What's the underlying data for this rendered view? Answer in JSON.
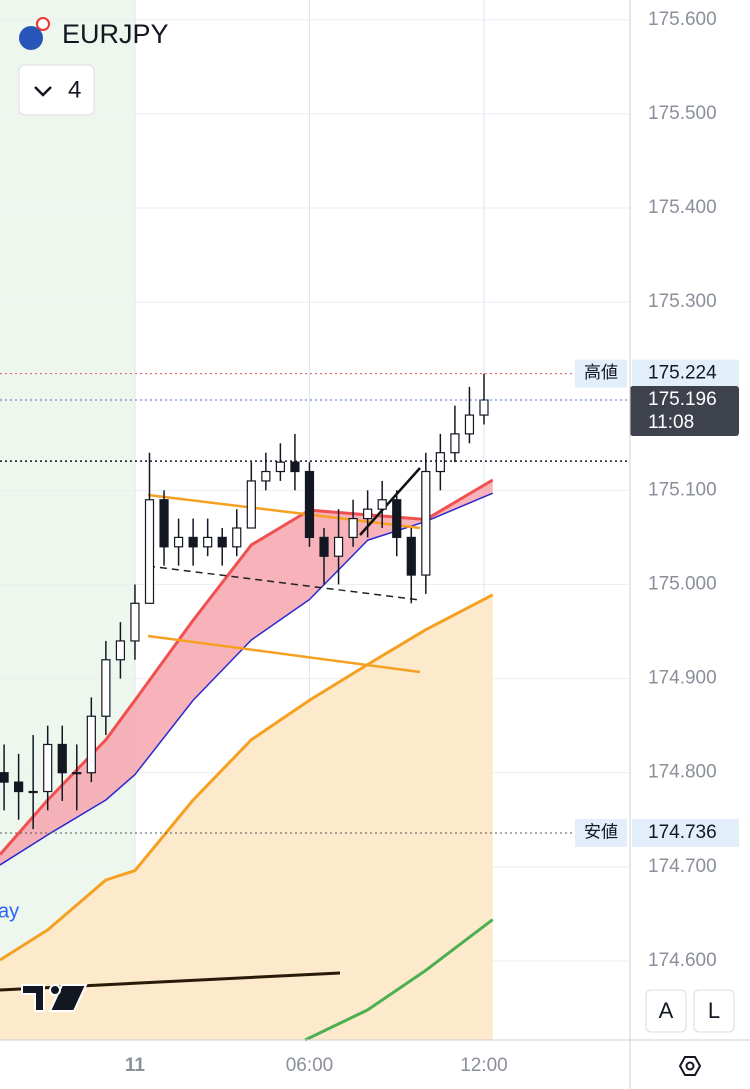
{
  "chart_data": {
    "type": "candlestick",
    "title": "EURJPY",
    "interval": "4",
    "legend_fragment": "ay",
    "buttons": [
      "A",
      "L"
    ],
    "xlim": [
      -4.64,
      17.02
    ],
    "ylim": [
      174.516,
      175.621
    ],
    "xticks": [
      {
        "value": 0,
        "label": "11"
      },
      {
        "value": 6,
        "label": "06:00"
      },
      {
        "value": 12,
        "label": "12:00"
      }
    ],
    "yticks": [
      {
        "value": 175.6,
        "label": "175.600"
      },
      {
        "value": 175.5,
        "label": "175.500"
      },
      {
        "value": 175.4,
        "label": "175.400"
      },
      {
        "value": 175.3,
        "label": "175.300"
      },
      {
        "value": 175.1,
        "label": "175.100"
      },
      {
        "value": 175.0,
        "label": "175.000"
      },
      {
        "value": 174.9,
        "label": "174.900"
      },
      {
        "value": 174.8,
        "label": "174.800"
      },
      {
        "value": 174.7,
        "label": "174.700"
      },
      {
        "value": 174.6,
        "label": "174.600"
      }
    ],
    "grid": true,
    "candles": {
      "x": [
        -4.5,
        -4,
        -3.5,
        -3,
        -2.5,
        -2,
        -1.5,
        -1,
        -0.5,
        0,
        0.5,
        1,
        1.5,
        2,
        2.5,
        3,
        3.5,
        4,
        4.5,
        5,
        5.5,
        6,
        6.5,
        7,
        7.5,
        8,
        8.5,
        9,
        9.5,
        10,
        10.5,
        11,
        11.5,
        12
      ],
      "open": [
        174.8,
        174.79,
        174.78,
        174.78,
        174.83,
        174.8,
        174.8,
        174.86,
        174.92,
        174.94,
        174.98,
        175.09,
        175.04,
        175.05,
        175.04,
        175.05,
        175.04,
        175.06,
        175.11,
        175.12,
        175.13,
        175.12,
        175.05,
        175.03,
        175.05,
        175.07,
        175.08,
        175.09,
        175.05,
        175.01,
        175.12,
        175.14,
        175.16,
        175.18
      ],
      "high": [
        174.83,
        174.82,
        174.84,
        174.85,
        174.85,
        174.83,
        174.88,
        174.94,
        174.96,
        175.0,
        175.14,
        175.1,
        175.07,
        175.07,
        175.07,
        175.06,
        175.08,
        175.13,
        175.14,
        175.15,
        175.16,
        175.13,
        175.06,
        175.08,
        175.09,
        175.1,
        175.11,
        175.1,
        175.06,
        175.14,
        175.16,
        175.19,
        175.21,
        175.224
      ],
      "low": [
        174.76,
        174.75,
        174.74,
        174.76,
        174.77,
        174.76,
        174.79,
        174.84,
        174.9,
        174.92,
        174.98,
        175.02,
        175.02,
        175.02,
        175.03,
        175.02,
        175.03,
        175.06,
        175.1,
        175.11,
        175.1,
        175.04,
        175.0,
        175.0,
        175.04,
        175.05,
        175.06,
        175.03,
        174.98,
        174.99,
        175.1,
        175.13,
        175.15,
        175.17
      ],
      "close": [
        174.79,
        174.78,
        174.78,
        174.83,
        174.8,
        174.8,
        174.86,
        174.92,
        174.94,
        174.98,
        175.09,
        175.04,
        175.05,
        175.04,
        175.05,
        175.04,
        175.06,
        175.11,
        175.12,
        175.13,
        175.12,
        175.05,
        175.03,
        175.05,
        175.07,
        175.08,
        175.09,
        175.05,
        175.01,
        175.12,
        175.14,
        175.16,
        175.18,
        175.196
      ]
    },
    "lines": [
      {
        "color": "#f05050",
        "width": 3,
        "x": [
          -4.64,
          -3,
          -1,
          0,
          2,
          4,
          6,
          8,
          10,
          12.3
        ],
        "values": [
          174.713,
          174.771,
          174.835,
          174.877,
          174.962,
          175.042,
          175.079,
          175.074,
          175.069,
          175.111
        ]
      },
      {
        "color": "#2a2ad0",
        "width": 1.5,
        "x": [
          -4.64,
          -3,
          -1,
          0,
          2,
          4,
          6,
          8,
          10,
          12.3
        ],
        "values": [
          174.702,
          174.734,
          174.771,
          174.798,
          174.877,
          174.941,
          174.984,
          175.047,
          175.067,
          175.097
        ]
      },
      {
        "color": "#f5a020",
        "width": 3,
        "x": [
          -4.64,
          -3,
          -1,
          0,
          2,
          4,
          6,
          8,
          10,
          12.3
        ],
        "values": [
          174.601,
          174.633,
          174.686,
          174.696,
          174.771,
          174.835,
          174.877,
          174.915,
          174.952,
          174.989
        ]
      },
      {
        "color": "#4caf50",
        "width": 3,
        "x": [
          5.85,
          8,
          10,
          12.3
        ],
        "values": [
          174.516,
          174.548,
          174.59,
          174.644
        ]
      }
    ],
    "price_lines": [
      {
        "label": "高値",
        "value": 175.224,
        "value_label": "175.224",
        "color": "#e05a5a"
      },
      {
        "label": "安値",
        "value": 174.736,
        "value_label": "174.736",
        "color": "#555555"
      }
    ],
    "last_price": {
      "value": 175.196,
      "value_label": "175.196",
      "countdown": "11:08"
    },
    "level_line": 175.131
  }
}
